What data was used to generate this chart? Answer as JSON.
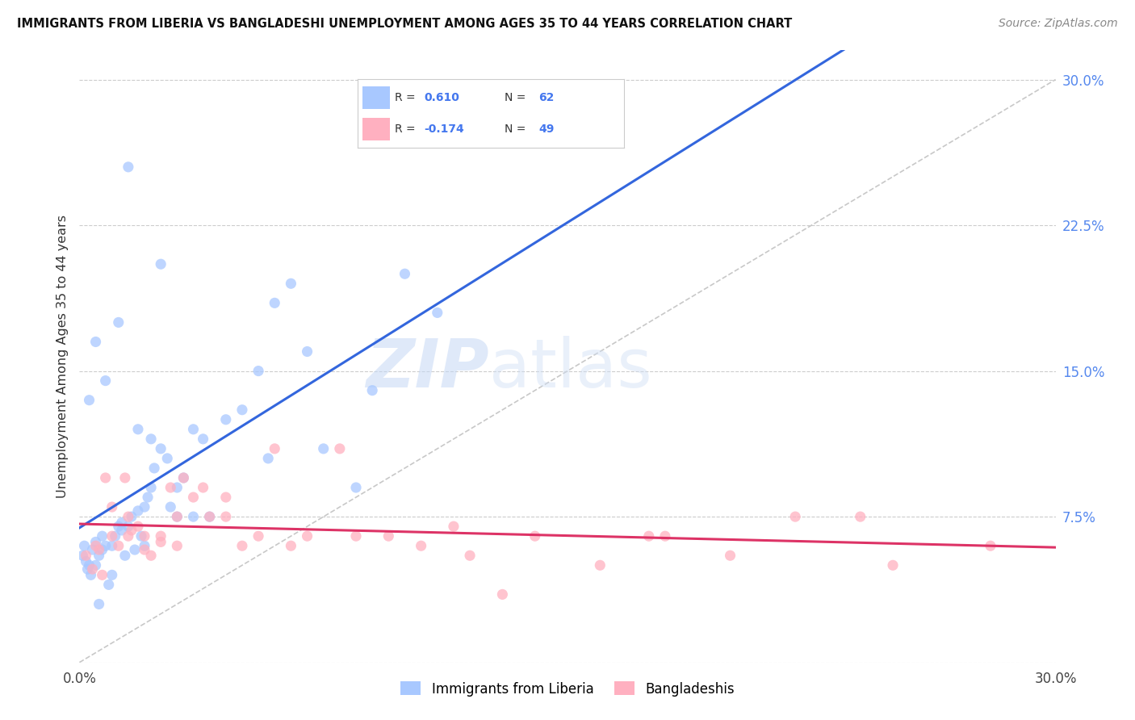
{
  "title": "IMMIGRANTS FROM LIBERIA VS BANGLADESHI UNEMPLOYMENT AMONG AGES 35 TO 44 YEARS CORRELATION CHART",
  "source": "Source: ZipAtlas.com",
  "ylabel": "Unemployment Among Ages 35 to 44 years",
  "y_ticks_labels": [
    "",
    "7.5%",
    "15.0%",
    "22.5%",
    "30.0%"
  ],
  "y_tick_vals": [
    0.0,
    7.5,
    15.0,
    22.5,
    30.0
  ],
  "xlim": [
    0.0,
    30.0
  ],
  "ylim": [
    0.0,
    31.5
  ],
  "legend_blue_r": "0.610",
  "legend_blue_n": "62",
  "legend_pink_r": "-0.174",
  "legend_pink_n": "49",
  "color_blue": "#A8C8FF",
  "color_blue_line": "#3366DD",
  "color_pink": "#FFB0C0",
  "color_pink_line": "#DD3366",
  "color_diagonal": "#C8C8C8",
  "watermark_zip": "ZIP",
  "watermark_atlas": "atlas",
  "blue_points_x": [
    0.1,
    0.15,
    0.2,
    0.25,
    0.3,
    0.35,
    0.4,
    0.5,
    0.5,
    0.6,
    0.7,
    0.7,
    0.8,
    0.9,
    1.0,
    1.0,
    1.1,
    1.2,
    1.3,
    1.3,
    1.4,
    1.5,
    1.6,
    1.7,
    1.8,
    1.9,
    2.0,
    2.0,
    2.1,
    2.2,
    2.3,
    2.5,
    2.7,
    2.8,
    3.0,
    3.0,
    3.2,
    3.5,
    3.8,
    4.0,
    4.5,
    5.0,
    5.5,
    5.8,
    6.0,
    6.5,
    7.0,
    7.5,
    8.5,
    9.0,
    10.0,
    11.0,
    1.5,
    2.5,
    0.5,
    0.3,
    0.8,
    1.2,
    1.8,
    2.2,
    0.6,
    3.5
  ],
  "blue_points_y": [
    5.5,
    6.0,
    5.2,
    4.8,
    5.0,
    4.5,
    5.8,
    6.2,
    5.0,
    5.5,
    5.8,
    6.5,
    6.0,
    4.0,
    4.5,
    6.0,
    6.5,
    7.0,
    7.2,
    6.8,
    5.5,
    7.0,
    7.5,
    5.8,
    7.8,
    6.5,
    6.0,
    8.0,
    8.5,
    9.0,
    10.0,
    11.0,
    10.5,
    8.0,
    9.0,
    7.5,
    9.5,
    12.0,
    11.5,
    7.5,
    12.5,
    13.0,
    15.0,
    10.5,
    18.5,
    19.5,
    16.0,
    11.0,
    9.0,
    14.0,
    20.0,
    18.0,
    25.5,
    20.5,
    16.5,
    13.5,
    14.5,
    17.5,
    12.0,
    11.5,
    3.0,
    7.5
  ],
  "pink_points_x": [
    0.2,
    0.4,
    0.5,
    0.6,
    0.8,
    1.0,
    1.2,
    1.4,
    1.5,
    1.6,
    1.8,
    2.0,
    2.2,
    2.5,
    2.8,
    3.0,
    3.2,
    3.5,
    3.8,
    4.0,
    4.5,
    5.0,
    5.5,
    6.0,
    7.0,
    8.0,
    9.5,
    10.5,
    12.0,
    13.0,
    14.0,
    16.0,
    18.0,
    20.0,
    22.0,
    25.0,
    28.0,
    1.0,
    1.5,
    2.0,
    2.5,
    3.0,
    4.5,
    6.5,
    8.5,
    11.5,
    17.5,
    24.0,
    0.7
  ],
  "pink_points_y": [
    5.5,
    4.8,
    6.0,
    5.8,
    9.5,
    6.5,
    6.0,
    9.5,
    6.5,
    6.8,
    7.0,
    5.8,
    5.5,
    6.2,
    9.0,
    6.0,
    9.5,
    8.5,
    9.0,
    7.5,
    8.5,
    6.0,
    6.5,
    11.0,
    6.5,
    11.0,
    6.5,
    6.0,
    5.5,
    3.5,
    6.5,
    5.0,
    6.5,
    5.5,
    7.5,
    5.0,
    6.0,
    8.0,
    7.5,
    6.5,
    6.5,
    7.5,
    7.5,
    6.0,
    6.5,
    7.0,
    6.5,
    7.5,
    4.5
  ]
}
